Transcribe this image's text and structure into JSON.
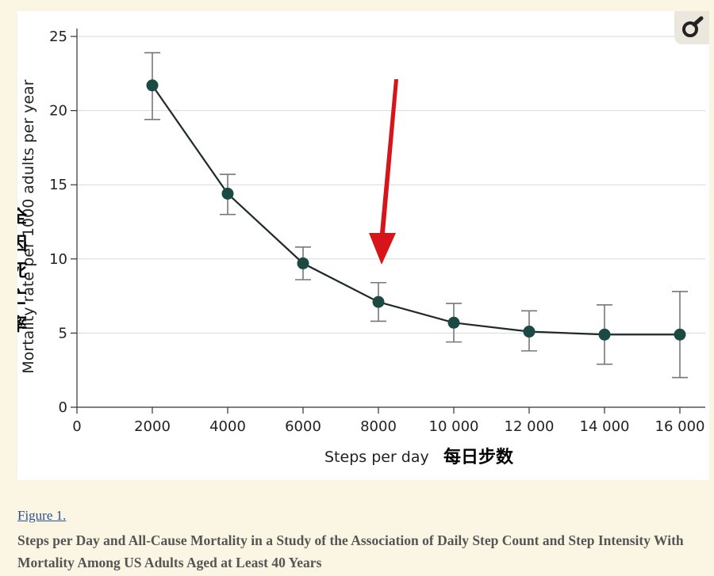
{
  "chart_data": {
    "type": "line",
    "x": [
      2000,
      4000,
      6000,
      8000,
      10000,
      12000,
      14000,
      16000
    ],
    "x_tick_labels": [
      "0",
      "2000",
      "4000",
      "6000",
      "8000",
      "10 000",
      "12 000",
      "14 000",
      "16 000"
    ],
    "series": [
      {
        "values": [
          21.7,
          14.4,
          9.7,
          7.1,
          5.7,
          5.1,
          4.9,
          4.9
        ],
        "ci_low": [
          19.4,
          13.0,
          8.6,
          5.8,
          4.4,
          3.8,
          2.9,
          2.0
        ],
        "ci_high": [
          23.9,
          15.7,
          10.8,
          8.4,
          7.0,
          6.5,
          6.9,
          7.8
        ]
      }
    ],
    "xlim": [
      0,
      16000
    ],
    "ylim": [
      0,
      25
    ],
    "y_ticks": [
      0,
      5,
      10,
      15,
      20,
      25
    ],
    "xlabel": "Steps per day",
    "ylabel": "Mortality rate per 1000 adults per year",
    "grid": "horizontal",
    "annotations": {
      "xlabel_cn": "每日步数",
      "ylabel_cn": [
        "全",
        "因",
        "死",
        "亡",
        "率"
      ],
      "arrow_target_x": 8000,
      "arrow_color": "#d7141a"
    },
    "colors": {
      "line": "#1f2a2a",
      "marker": "#1b4a45",
      "error_bar": "#777777",
      "grid": "#d9d9d9"
    }
  },
  "badge_icon": "magnifier-logo-icon",
  "figure": {
    "link_text": "Figure 1.",
    "caption": "Steps per Day and All-Cause Mortality in a Study of the Association of Daily Step Count and Step Intensity With Mortality Among US Adults Aged at Least 40 Years"
  }
}
